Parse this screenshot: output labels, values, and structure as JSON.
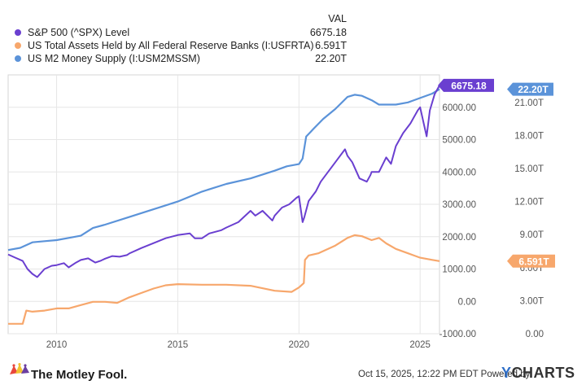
{
  "legend": {
    "header": "VAL",
    "items": [
      {
        "label": "S&P 500 (^SPX) Level",
        "value": "6675.18",
        "color": "#6a3fd0"
      },
      {
        "label": "US Total Assets Held by All Federal Reserve Banks (I:USFRTA)",
        "value": "6.591T",
        "color": "#f7a76c"
      },
      {
        "label": "US M2 Money Supply (I:USM2MSSM)",
        "value": "22.20T",
        "color": "#5b93d9"
      }
    ]
  },
  "footer": {
    "brand": "The Motley Fool.",
    "timestamp": "Oct 15, 2025, 12:22 PM EDT Powered by",
    "ycharts_y": "Y",
    "ycharts_rest": "CHARTS"
  },
  "chart_data": {
    "type": "line",
    "x_range": [
      2008.0,
      2025.8
    ],
    "x_ticks": [
      2010,
      2015,
      2020,
      2025
    ],
    "x_tick_labels": [
      "2010",
      "2015",
      "2020",
      "2025"
    ],
    "left_axis": {
      "range": [
        -1000,
        7000
      ],
      "ticks": [
        -1000,
        0,
        1000,
        2000,
        3000,
        4000,
        5000,
        6000
      ],
      "tick_labels": [
        "-1000.00",
        "0.00",
        "1000.00",
        "2000.00",
        "3000.00",
        "4000.00",
        "5000.00",
        "6000.00"
      ]
    },
    "right_axis": {
      "range": [
        0,
        23.5
      ],
      "ticks": [
        0,
        3,
        6,
        9,
        12,
        15,
        18,
        21
      ],
      "tick_labels": [
        "0.00",
        "3.00T",
        "6.00T",
        "9.00T",
        "12.00T",
        "15.00T",
        "18.00T",
        "21.00T"
      ]
    },
    "grid": true,
    "series": [
      {
        "name": "S&P 500 (^SPX) Level",
        "axis": "left",
        "color": "#6a3fd0",
        "end_label": "6675.18",
        "x": [
          2008.0,
          2008.3,
          2008.6,
          2008.8,
          2009.0,
          2009.2,
          2009.5,
          2009.8,
          2010.0,
          2010.3,
          2010.5,
          2010.8,
          2011.0,
          2011.3,
          2011.6,
          2011.8,
          2012.0,
          2012.3,
          2012.6,
          2012.9,
          2013.0,
          2013.5,
          2014.0,
          2014.5,
          2015.0,
          2015.5,
          2015.7,
          2016.0,
          2016.3,
          2016.8,
          2017.0,
          2017.5,
          2018.0,
          2018.2,
          2018.5,
          2018.9,
          2019.0,
          2019.3,
          2019.6,
          2019.9,
          2020.0,
          2020.15,
          2020.22,
          2020.4,
          2020.7,
          2020.9,
          2021.0,
          2021.5,
          2021.9,
          2022.0,
          2022.2,
          2022.5,
          2022.8,
          2022.95,
          2023.0,
          2023.3,
          2023.6,
          2023.8,
          2024.0,
          2024.3,
          2024.6,
          2024.9,
          2025.0,
          2025.15,
          2025.27,
          2025.4,
          2025.6,
          2025.8
        ],
        "values": [
          1450,
          1350,
          1250,
          1000,
          850,
          750,
          1000,
          1100,
          1120,
          1180,
          1050,
          1200,
          1280,
          1330,
          1200,
          1250,
          1320,
          1400,
          1380,
          1430,
          1480,
          1650,
          1800,
          1950,
          2050,
          2100,
          1950,
          1950,
          2100,
          2200,
          2280,
          2450,
          2800,
          2650,
          2800,
          2500,
          2650,
          2900,
          3000,
          3200,
          3250,
          2450,
          2600,
          3100,
          3400,
          3700,
          3800,
          4300,
          4700,
          4500,
          4300,
          3800,
          3700,
          3900,
          4000,
          4000,
          4450,
          4250,
          4800,
          5200,
          5500,
          5900,
          6000,
          5500,
          5100,
          5900,
          6400,
          6675.18
        ]
      },
      {
        "name": "US Total Assets Held by All Federal Reserve Banks (I:USFRTA)",
        "axis": "right",
        "color": "#f7a76c",
        "end_label": "6.591T",
        "x": [
          2008.0,
          2008.6,
          2008.75,
          2009.0,
          2009.5,
          2010.0,
          2010.5,
          2011.0,
          2011.5,
          2012.0,
          2012.5,
          2013.0,
          2013.5,
          2014.0,
          2014.5,
          2015.0,
          2016.0,
          2017.0,
          2018.0,
          2019.0,
          2019.7,
          2020.0,
          2020.2,
          2020.25,
          2020.4,
          2020.8,
          2021.0,
          2021.5,
          2022.0,
          2022.3,
          2022.6,
          2023.0,
          2023.3,
          2023.6,
          2024.0,
          2024.5,
          2025.0,
          2025.5,
          2025.8
        ],
        "values": [
          0.9,
          0.9,
          2.1,
          2.0,
          2.1,
          2.3,
          2.3,
          2.6,
          2.9,
          2.9,
          2.8,
          3.3,
          3.7,
          4.1,
          4.4,
          4.5,
          4.45,
          4.45,
          4.35,
          3.9,
          3.8,
          4.2,
          4.6,
          6.7,
          7.1,
          7.3,
          7.5,
          8.0,
          8.7,
          8.95,
          8.85,
          8.5,
          8.7,
          8.2,
          7.7,
          7.3,
          6.9,
          6.7,
          6.591
        ]
      },
      {
        "name": "US M2 Money Supply (I:USM2MSSM)",
        "axis": "right",
        "color": "#5b93d9",
        "end_label": "22.20T",
        "x": [
          2008.0,
          2008.5,
          2009.0,
          2009.5,
          2010.0,
          2010.5,
          2011.0,
          2011.5,
          2012.0,
          2013.0,
          2014.0,
          2015.0,
          2016.0,
          2017.0,
          2018.0,
          2019.0,
          2019.5,
          2020.0,
          2020.15,
          2020.3,
          2020.6,
          2021.0,
          2021.5,
          2022.0,
          2022.3,
          2022.6,
          2023.0,
          2023.3,
          2023.6,
          2024.0,
          2024.5,
          2025.0,
          2025.5,
          2025.8
        ],
        "values": [
          7.6,
          7.8,
          8.3,
          8.4,
          8.5,
          8.7,
          8.9,
          9.6,
          9.9,
          10.6,
          11.3,
          12.0,
          12.9,
          13.6,
          14.1,
          14.8,
          15.2,
          15.4,
          15.9,
          17.9,
          18.6,
          19.5,
          20.4,
          21.5,
          21.7,
          21.6,
          21.2,
          20.8,
          20.8,
          20.8,
          21.0,
          21.4,
          21.8,
          22.2
        ]
      }
    ]
  }
}
